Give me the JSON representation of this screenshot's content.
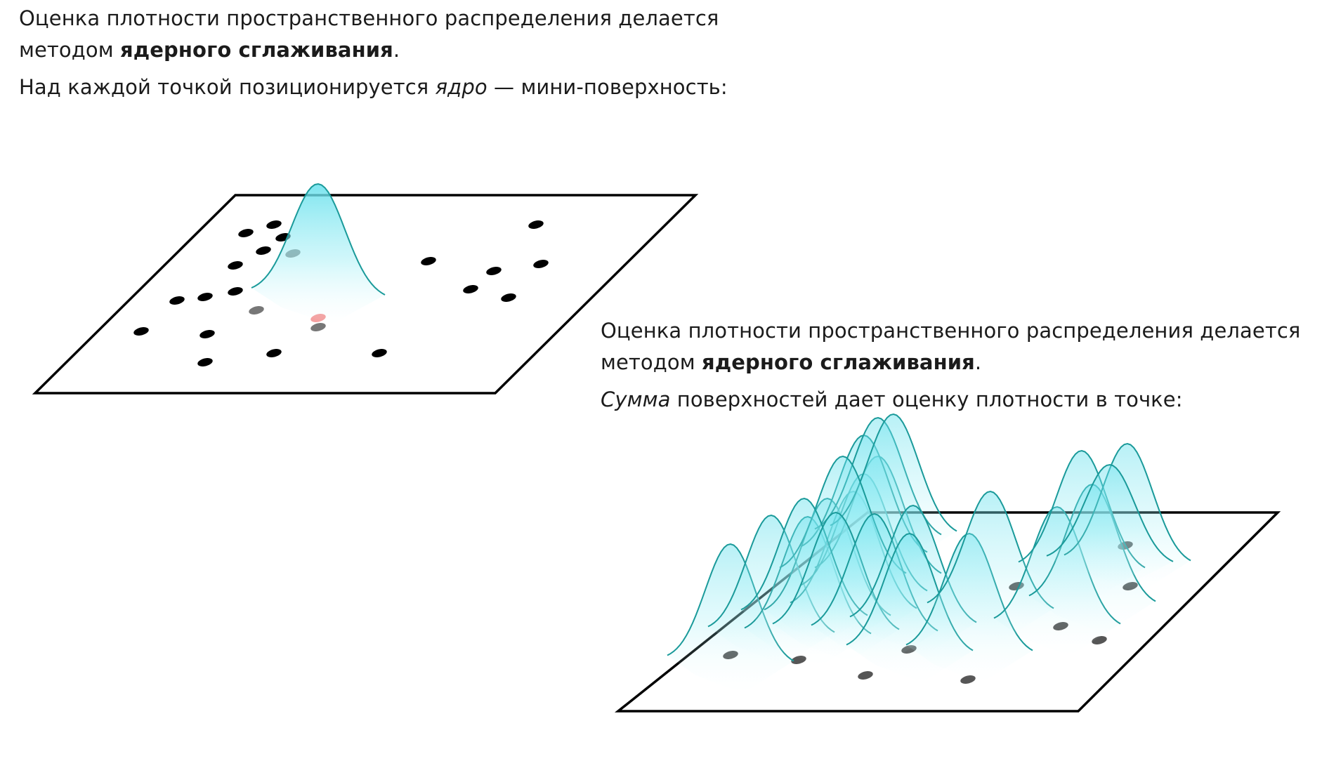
{
  "top_block": {
    "line1": "Оценка плотности пространственного распределения делается",
    "line2_prefix": "методом ",
    "line2_bold": "ядерного сглаживания",
    "line2_suffix": ".",
    "line3_prefix": "Над каждой точкой позиционируется ",
    "line3_italic": "ядро",
    "line3_suffix": " — мини-поверхность:"
  },
  "bottom_block": {
    "line1": "Оценка плотности пространственного распределения делается",
    "line2_prefix": "методом ",
    "line2_bold": "ядерного сглаживания",
    "line2_suffix": ".",
    "line3_italic": "Сумма",
    "line3_suffix": " поверхностей дает оценку плотности в точке:"
  },
  "colors": {
    "text": "#1b1b1b",
    "plane_outline": "#000000",
    "point": "#000000",
    "highlight_point": "#f4a0a0",
    "kernel_stroke": "#1a9a9a",
    "kernel_fill": "#66e0ec"
  },
  "figures": {
    "kernel_figure": {
      "kernel_count": 1,
      "points_total": 23,
      "highlighted_points": 1
    },
    "sum_figure": {
      "kernel_count": 23
    }
  }
}
